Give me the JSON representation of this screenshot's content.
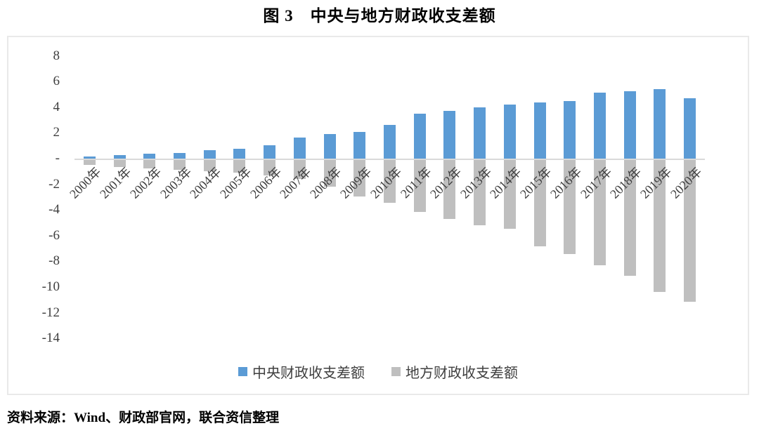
{
  "title": "图 3　中央与地方财政收支差额",
  "source_note": "资料来源：Wind、财政部官网，联合资信整理",
  "colors": {
    "central_series": "#5B9BD5",
    "local_series": "#BFBFBF",
    "axis_line": "#D9D9D9",
    "tick_text": "#3F3F3F",
    "frame_border": "#E9E9E9"
  },
  "chart_data": {
    "type": "bar",
    "title": "图 3　中央与地方财政收支差额",
    "categories": [
      "2000年",
      "2001年",
      "2002年",
      "2003年",
      "2004年",
      "2005年",
      "2006年",
      "2007年",
      "2008年",
      "2009年",
      "2010年",
      "2011年",
      "2012年",
      "2013年",
      "2014年",
      "2015年",
      "2016年",
      "2017年",
      "2018年",
      "2019年",
      "2020年"
    ],
    "series": [
      {
        "name": "中央财政收支差额",
        "color": "#5B9BD5",
        "values": [
          0.15,
          0.28,
          0.36,
          0.44,
          0.66,
          0.78,
          1.05,
          1.63,
          1.93,
          2.07,
          2.65,
          3.48,
          3.74,
          3.97,
          4.19,
          4.37,
          4.5,
          5.13,
          5.27,
          5.42,
          4.69
        ]
      },
      {
        "name": "地方财政收支差额",
        "color": "#BFBFBF",
        "values": [
          -0.4,
          -0.53,
          -0.68,
          -0.74,
          -0.87,
          -1.01,
          -1.21,
          -1.48,
          -2.06,
          -2.84,
          -3.33,
          -4.02,
          -4.61,
          -5.07,
          -5.33,
          -6.73,
          -7.31,
          -8.18,
          -9.03,
          -10.27,
          -11.04
        ]
      }
    ],
    "xlabel": "",
    "ylabel": "",
    "ylim": [
      -14,
      8
    ],
    "ytick_step": 2,
    "yticks": [
      {
        "value": 8,
        "label": "8"
      },
      {
        "value": 6,
        "label": "6"
      },
      {
        "value": 4,
        "label": "4"
      },
      {
        "value": 2,
        "label": "2"
      },
      {
        "value": 0,
        "label": "-"
      },
      {
        "value": -2,
        "label": "-2"
      },
      {
        "value": -4,
        "label": "-4"
      },
      {
        "value": -6,
        "label": "-6"
      },
      {
        "value": -8,
        "label": "-8"
      },
      {
        "value": -10,
        "label": "-10"
      },
      {
        "value": -12,
        "label": "-12"
      },
      {
        "value": -14,
        "label": "-14"
      }
    ],
    "grid": false,
    "legend_position": "bottom"
  }
}
